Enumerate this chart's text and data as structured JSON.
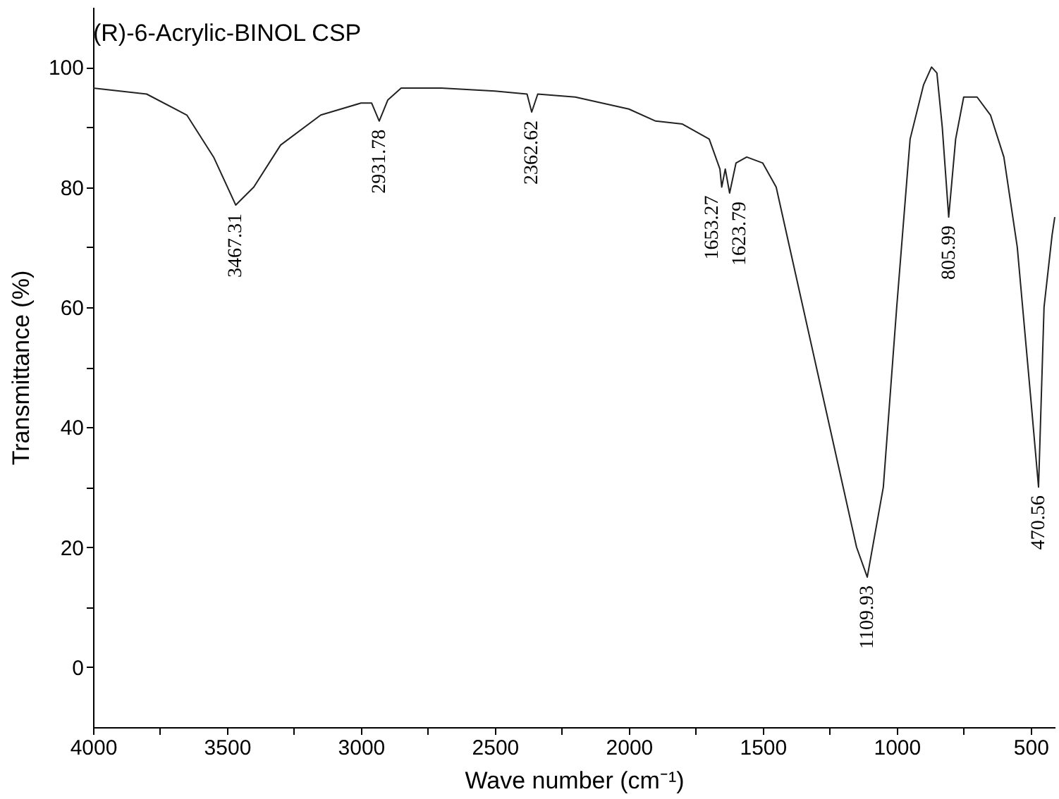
{
  "chart_data": {
    "type": "line",
    "title": "(R)-6-Acrylic-BINOL CSP",
    "xlabel": "Wave number (cm⁻¹)",
    "ylabel": "Transmittance (%)",
    "xlim": [
      4000,
      410
    ],
    "ylim": [
      -10,
      110
    ],
    "xticks": [
      4000,
      {
        "value": 3750,
        "label": null
      },
      3500,
      {
        "value": 3250,
        "label": null
      },
      3000,
      {
        "value": 2750,
        "label": null
      },
      2500,
      {
        "value": 2250,
        "label": null
      },
      2000,
      {
        "value": 1750,
        "label": null
      },
      1500,
      {
        "value": 1250,
        "label": null
      },
      1000,
      {
        "value": 750,
        "label": null
      },
      500
    ],
    "yticks": [
      0,
      {
        "value": 10,
        "label": null
      },
      20,
      {
        "value": 30,
        "label": null
      },
      40,
      {
        "value": 50,
        "label": null
      },
      60,
      {
        "value": 70,
        "label": null
      },
      80,
      {
        "value": 90,
        "label": null
      },
      100
    ],
    "grid": false,
    "marker": "none",
    "line_style": "solid",
    "series": [
      {
        "color": "#222222",
        "x": [
          4000,
          3800,
          3650,
          3550,
          3467.31,
          3400,
          3300,
          3150,
          3000,
          2960,
          2931.78,
          2900,
          2850,
          2700,
          2500,
          2380,
          2362.62,
          2340,
          2200,
          2000,
          1900,
          1800,
          1700,
          1660,
          1653.27,
          1640,
          1623.79,
          1600,
          1560,
          1500,
          1450,
          1400,
          1300,
          1200,
          1150,
          1109.93,
          1050,
          1000,
          950,
          900,
          870,
          850,
          830,
          805.99,
          780,
          750,
          700,
          650,
          600,
          550,
          500,
          470.56,
          450,
          420,
          410
        ],
        "values": [
          96.5,
          95.5,
          92,
          85,
          77,
          80,
          87,
          92,
          94,
          94,
          91,
          94.5,
          96.5,
          96.5,
          96,
          95.5,
          92.5,
          95.5,
          95,
          93,
          91,
          90.5,
          88,
          83,
          80,
          83,
          79,
          84,
          85,
          84,
          80,
          70,
          50,
          30,
          20,
          15,
          30,
          60,
          88,
          97,
          100,
          99,
          90,
          75,
          88,
          95,
          95,
          92,
          85,
          70,
          45,
          30,
          60,
          72,
          75
        ]
      }
    ],
    "annotations": [
      {
        "text": "3467.31",
        "x": 3467.31,
        "y": 77
      },
      {
        "text": "2931.78",
        "x": 2931.78,
        "y": 91
      },
      {
        "text": "2362.62",
        "x": 2362.62,
        "y": 92.5
      },
      {
        "text": "1653.27",
        "x": 1653.27,
        "y": 80
      },
      {
        "text": "1623.79",
        "x": 1623.79,
        "y": 79
      },
      {
        "text": "1109.93",
        "x": 1109.93,
        "y": 15
      },
      {
        "text": "805.99",
        "x": 805.99,
        "y": 75
      },
      {
        "text": "470.56",
        "x": 470.56,
        "y": 30
      }
    ]
  }
}
